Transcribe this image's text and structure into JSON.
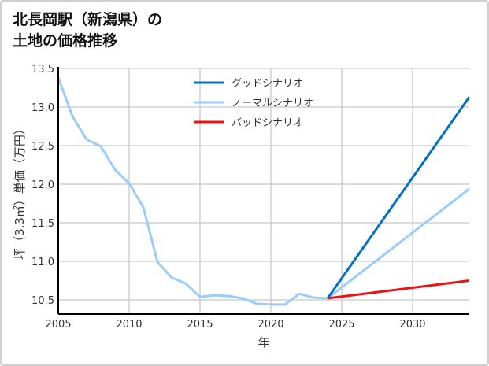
{
  "title": {
    "line1": "北長岡駅（新潟県）の",
    "line2": "土地の価格推移"
  },
  "chart_data": {
    "type": "line",
    "title": "北長岡駅（新潟県）の土地の価格推移",
    "xlabel": "年",
    "ylabel": "坪（3.3㎡）単価（万円）",
    "xlim": [
      2005,
      2034
    ],
    "ylim": [
      10.32,
      13.5
    ],
    "xticks": [
      2005,
      2010,
      2015,
      2020,
      2025,
      2030
    ],
    "yticks": [
      10.5,
      11.0,
      11.5,
      12.0,
      12.5,
      13.0,
      13.5
    ],
    "xtick_labels": [
      "2005",
      "2010",
      "2015",
      "2020",
      "2025",
      "2030"
    ],
    "ytick_labels": [
      "10.5",
      "11.0",
      "11.5",
      "12.0",
      "12.5",
      "13.0",
      "13.5"
    ],
    "grid": true,
    "legend_position": "top-center",
    "series": [
      {
        "name": "グッドシナリオ",
        "color": "#0070c8",
        "x": [
          2024,
          2034
        ],
        "y": [
          10.52,
          13.13
        ]
      },
      {
        "name": "ノーマルシナリオ",
        "color": "#99ccff",
        "x": [
          2005,
          2006,
          2007,
          2008,
          2009,
          2010,
          2011,
          2012,
          2013,
          2014,
          2015,
          2016,
          2017,
          2018,
          2019,
          2020,
          2021,
          2022,
          2023,
          2024,
          2034
        ],
        "y": [
          13.38,
          12.88,
          12.58,
          12.49,
          12.19,
          12.01,
          11.7,
          10.99,
          10.79,
          10.71,
          10.54,
          10.56,
          10.55,
          10.52,
          10.45,
          10.44,
          10.44,
          10.58,
          10.53,
          10.52,
          11.94
        ]
      },
      {
        "name": "バッドシナリオ",
        "color": "#ee1111",
        "x": [
          2024,
          2034
        ],
        "y": [
          10.52,
          10.75
        ]
      }
    ]
  }
}
